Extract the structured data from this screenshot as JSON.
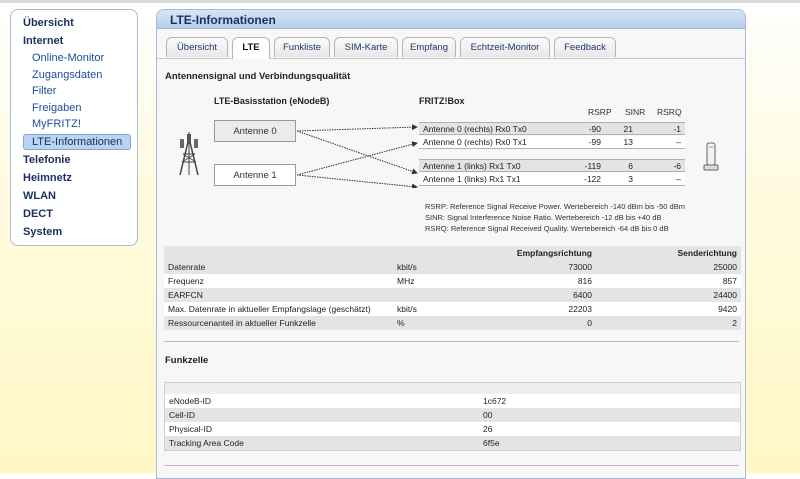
{
  "sidebar": {
    "items": [
      {
        "label": "Übersicht",
        "level": "top"
      },
      {
        "label": "Internet",
        "level": "top"
      },
      {
        "label": "Online-Monitor",
        "level": "sub"
      },
      {
        "label": "Zugangsdaten",
        "level": "sub"
      },
      {
        "label": "Filter",
        "level": "sub"
      },
      {
        "label": "Freigaben",
        "level": "sub"
      },
      {
        "label": "MyFRITZ!",
        "level": "sub"
      },
      {
        "label": "LTE-Informationen",
        "level": "sub",
        "active": true
      },
      {
        "label": "Telefonie",
        "level": "top"
      },
      {
        "label": "Heimnetz",
        "level": "top"
      },
      {
        "label": "WLAN",
        "level": "top"
      },
      {
        "label": "DECT",
        "level": "top"
      },
      {
        "label": "System",
        "level": "top"
      }
    ]
  },
  "page": {
    "title": "LTE-Informationen",
    "tabs": [
      "Übersicht",
      "LTE",
      "Funkliste",
      "SIM-Karte",
      "Empfang",
      "Echtzeit-Monitor",
      "Feedback"
    ],
    "active_tab": "LTE"
  },
  "signal": {
    "section_title": "Antennensignal und Verbindungsqualität",
    "base_station_label": "LTE-Basisstation (eNodeB)",
    "fritzbox_label": "FRITZ!Box",
    "col_rsrp": "RSRP",
    "col_sinr": "SINR",
    "col_rsrq": "RSRQ",
    "antennas": [
      "Antenne 0",
      "Antenne 1"
    ],
    "rows": [
      {
        "name": "Antenne 0 (rechts) Rx0 Tx0",
        "rsrp": "-90",
        "sinr": "21",
        "rsrq": "-1"
      },
      {
        "name": "Antenne 0 (rechts) Rx0 Tx1",
        "rsrp": "-99",
        "sinr": "13",
        "rsrq": "–"
      },
      {
        "name": "Antenne 1 (links) Rx1 Tx0",
        "rsrp": "-119",
        "sinr": "6",
        "rsrq": "-6"
      },
      {
        "name": "Antenne 1 (links) Rx1 Tx1",
        "rsrp": "-122",
        "sinr": "3",
        "rsrq": "–"
      }
    ],
    "legend": [
      "RSRP: Reference Signal Receive Power. Wertebereich -140 dBm bis -50 dBm",
      "SINR: Signal Interference Noise Ratio. Wertebereich -12 dB bis +40 dB",
      "RSRQ: Reference Signal Received Quality. Wertebereich -64 dB bis 0 dB"
    ]
  },
  "datatable": {
    "head_recv": "Empfangsrichtung",
    "head_send": "Senderichtung",
    "rows": [
      {
        "label": "Datenrate",
        "unit": "kbit/s",
        "recv": "73000",
        "send": "25000"
      },
      {
        "label": "Frequenz",
        "unit": "MHz",
        "recv": "816",
        "send": "857"
      },
      {
        "label": "EARFCN",
        "unit": "",
        "recv": "6400",
        "send": "24400"
      },
      {
        "label": "Max. Datenrate in aktueller Empfangslage (geschätzt)",
        "unit": "kbit/s",
        "recv": "22203",
        "send": "9420"
      },
      {
        "label": "Ressourcenanteil in aktueller Funkzelle",
        "unit": "%",
        "recv": "0",
        "send": "2"
      }
    ]
  },
  "funkzelle": {
    "title": "Funkzelle",
    "rows": [
      {
        "label": "eNodeB-ID",
        "value": "1c672"
      },
      {
        "label": "Cell-ID",
        "value": "00"
      },
      {
        "label": "Physical-ID",
        "value": "26"
      },
      {
        "label": "Tracking Area Code",
        "value": "6f5e"
      }
    ]
  },
  "icons": {
    "tower": "cell-tower-icon",
    "router": "fritzbox-router-icon"
  }
}
